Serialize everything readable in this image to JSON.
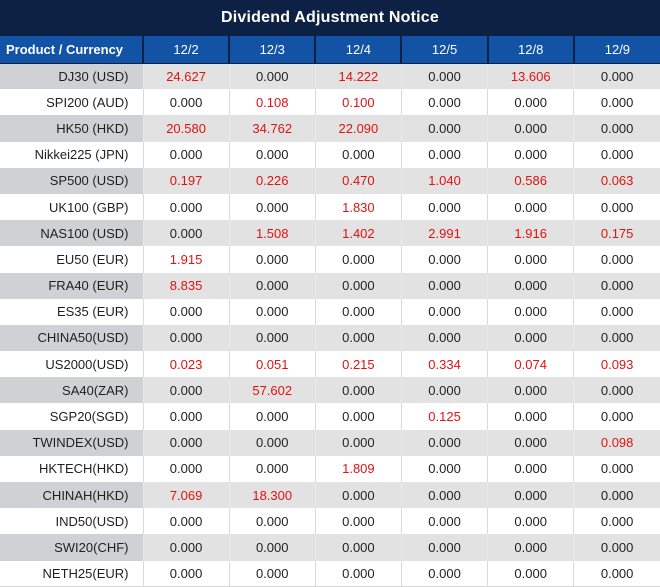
{
  "title": "Dividend Adjustment Notice",
  "colors": {
    "title_bg": "#0d2145",
    "header_bg": "#1353a6",
    "header_text": "#ffffff",
    "stripe_value_bg": "#e2e2e2",
    "stripe_product_bg": "#cfd1d5",
    "nonzero_value_color": "#e11212",
    "zero_value_color": "#1f1f1f",
    "grid_line": "#d9d9d9"
  },
  "chart_data": {
    "type": "table",
    "title": "Dividend Adjustment Notice",
    "columns": [
      "Product / Currency",
      "12/2",
      "12/3",
      "12/4",
      "12/5",
      "12/8",
      "12/9"
    ],
    "rows": [
      {
        "product": "DJ30 (USD)",
        "values": [
          "24.627",
          "0.000",
          "14.222",
          "0.000",
          "13.606",
          "0.000"
        ]
      },
      {
        "product": "SPI200 (AUD)",
        "values": [
          "0.000",
          "0.108",
          "0.100",
          "0.000",
          "0.000",
          "0.000"
        ]
      },
      {
        "product": "HK50 (HKD)",
        "values": [
          "20.580",
          "34.762",
          "22.090",
          "0.000",
          "0.000",
          "0.000"
        ]
      },
      {
        "product": "Nikkei225 (JPN)",
        "values": [
          "0.000",
          "0.000",
          "0.000",
          "0.000",
          "0.000",
          "0.000"
        ]
      },
      {
        "product": "SP500 (USD)",
        "values": [
          "0.197",
          "0.226",
          "0.470",
          "1.040",
          "0.586",
          "0.063"
        ]
      },
      {
        "product": "UK100 (GBP)",
        "values": [
          "0.000",
          "0.000",
          "1.830",
          "0.000",
          "0.000",
          "0.000"
        ]
      },
      {
        "product": "NAS100 (USD)",
        "values": [
          "0.000",
          "1.508",
          "1.402",
          "2.991",
          "1.916",
          "0.175"
        ]
      },
      {
        "product": "EU50 (EUR)",
        "values": [
          "1.915",
          "0.000",
          "0.000",
          "0.000",
          "0.000",
          "0.000"
        ]
      },
      {
        "product": "FRA40 (EUR)",
        "values": [
          "8.835",
          "0.000",
          "0.000",
          "0.000",
          "0.000",
          "0.000"
        ]
      },
      {
        "product": "ES35 (EUR)",
        "values": [
          "0.000",
          "0.000",
          "0.000",
          "0.000",
          "0.000",
          "0.000"
        ]
      },
      {
        "product": "CHINA50(USD)",
        "values": [
          "0.000",
          "0.000",
          "0.000",
          "0.000",
          "0.000",
          "0.000"
        ]
      },
      {
        "product": "US2000(USD)",
        "values": [
          "0.023",
          "0.051",
          "0.215",
          "0.334",
          "0.074",
          "0.093"
        ]
      },
      {
        "product": "SA40(ZAR)",
        "values": [
          "0.000",
          "57.602",
          "0.000",
          "0.000",
          "0.000",
          "0.000"
        ]
      },
      {
        "product": "SGP20(SGD)",
        "values": [
          "0.000",
          "0.000",
          "0.000",
          "0.125",
          "0.000",
          "0.000"
        ]
      },
      {
        "product": "TWINDEX(USD)",
        "values": [
          "0.000",
          "0.000",
          "0.000",
          "0.000",
          "0.000",
          "0.098"
        ]
      },
      {
        "product": "HKTECH(HKD)",
        "values": [
          "0.000",
          "0.000",
          "1.809",
          "0.000",
          "0.000",
          "0.000"
        ]
      },
      {
        "product": "CHINAH(HKD)",
        "values": [
          "7.069",
          "18.300",
          "0.000",
          "0.000",
          "0.000",
          "0.000"
        ]
      },
      {
        "product": "IND50(USD)",
        "values": [
          "0.000",
          "0.000",
          "0.000",
          "0.000",
          "0.000",
          "0.000"
        ]
      },
      {
        "product": "SWI20(CHF)",
        "values": [
          "0.000",
          "0.000",
          "0.000",
          "0.000",
          "0.000",
          "0.000"
        ]
      },
      {
        "product": "NETH25(EUR)",
        "values": [
          "0.000",
          "0.000",
          "0.000",
          "0.000",
          "0.000",
          "0.000"
        ]
      }
    ],
    "zero_display": "0.000",
    "layout": {
      "stripe_rows": "odd",
      "red_means": "non-zero adjustment"
    }
  }
}
